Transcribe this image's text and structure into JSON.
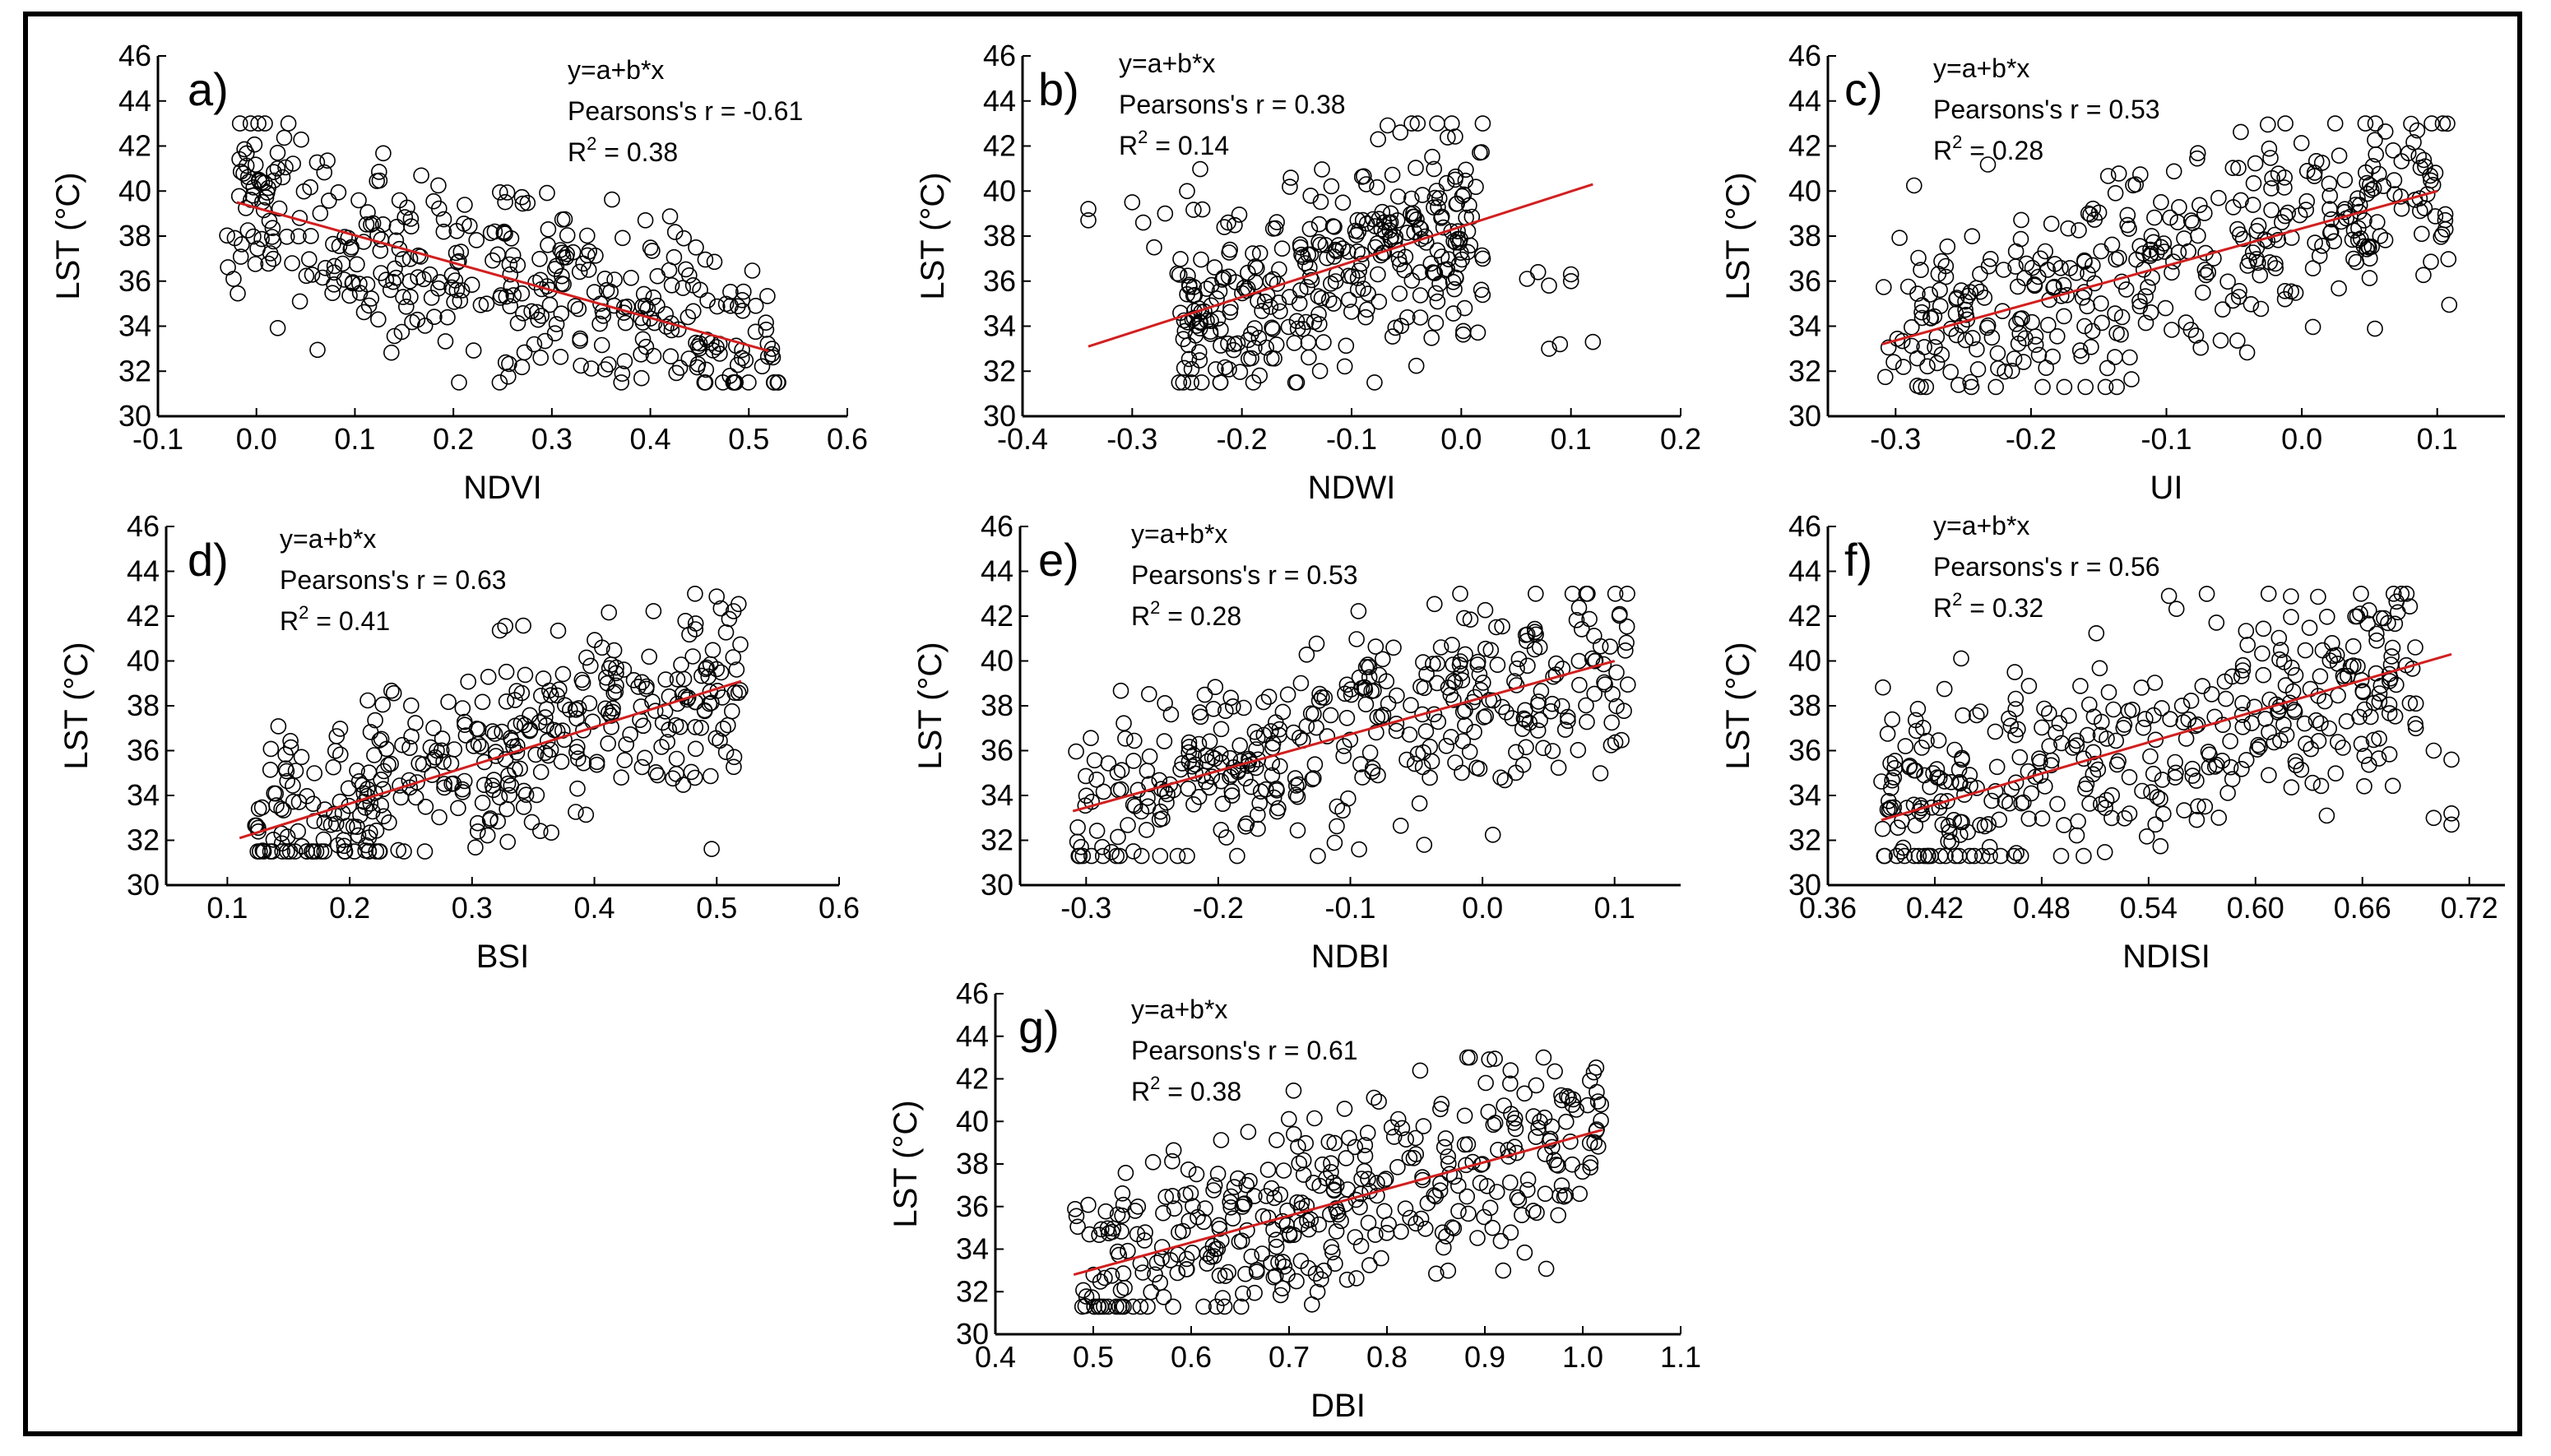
{
  "figure": {
    "colors": {
      "points": "#000000",
      "fit_line": "#d21f1f",
      "axes": "#000000",
      "background": "#ffffff"
    }
  },
  "chart_data": [
    {
      "id": "a",
      "type": "scatter",
      "panel_label": "a)",
      "xlabel": "NDVI",
      "ylabel": "LST (°C)",
      "xlim": [
        -0.1,
        0.6
      ],
      "ylim": [
        30,
        46
      ],
      "xticks": [
        -0.1,
        0.0,
        0.1,
        0.2,
        0.3,
        0.4,
        0.5,
        0.6
      ],
      "xtick_labels": [
        "-0.1",
        "0.0",
        "0.1",
        "0.2",
        "0.3",
        "0.4",
        "0.5",
        "0.6"
      ],
      "yticks": [
        30,
        32,
        34,
        36,
        38,
        40,
        42,
        44,
        46
      ],
      "ytick_labels": [
        "30",
        "32",
        "34",
        "36",
        "38",
        "40",
        "42",
        "44",
        "46"
      ],
      "equation": "y=a+b*x",
      "pearson": "Pearsons's r = -0.61",
      "r2_prefix": "R",
      "r2_value": " = 0.38",
      "fit": {
        "x": [
          -0.02,
          0.52
        ],
        "y": [
          39.5,
          32.9
        ]
      },
      "cloud": {
        "x_range": [
          -0.03,
          0.53
        ],
        "y_range": [
          31.5,
          43
        ],
        "trend": -12.0,
        "n": 380,
        "seed": 11
      }
    },
    {
      "id": "b",
      "type": "scatter",
      "panel_label": "b)",
      "xlabel": "NDWI",
      "ylabel": "LST (°C)",
      "xlim": [
        -0.4,
        0.2
      ],
      "ylim": [
        30,
        46
      ],
      "xticks": [
        -0.4,
        -0.3,
        -0.2,
        -0.1,
        0.0,
        0.1,
        0.2
      ],
      "xtick_labels": [
        "-0.4",
        "-0.3",
        "-0.2",
        "-0.1",
        "0.0",
        "0.1",
        "0.2"
      ],
      "yticks": [
        30,
        32,
        34,
        36,
        38,
        40,
        42,
        44,
        46
      ],
      "ytick_labels": [
        "30",
        "32",
        "34",
        "36",
        "38",
        "40",
        "42",
        "44",
        "46"
      ],
      "equation": "y=a+b*x",
      "pearson": "Pearsons's r = 0.38",
      "r2_prefix": "R",
      "r2_value": " = 0.14",
      "fit": {
        "x": [
          -0.34,
          0.12
        ],
        "y": [
          33.1,
          40.3
        ]
      },
      "cloud": {
        "x_range": [
          -0.26,
          0.02
        ],
        "y_range": [
          31.5,
          43
        ],
        "trend": 10.0,
        "n": 330,
        "seed": 23
      },
      "outliers": {
        "x": [
          -0.34,
          -0.34,
          -0.3,
          -0.29,
          -0.28,
          -0.27,
          -0.25,
          0.07,
          0.08,
          0.1,
          0.08,
          0.09,
          0.12,
          0.1,
          0.06
        ],
        "y": [
          38.7,
          39.2,
          39.5,
          38.6,
          37.5,
          39.0,
          40.0,
          36.4,
          35.8,
          36.0,
          33.0,
          33.2,
          33.3,
          36.3,
          36.1
        ]
      }
    },
    {
      "id": "c",
      "type": "scatter",
      "panel_label": "c)",
      "xlabel": "UI",
      "ylabel": "LST (°C)",
      "xlim": [
        -0.35,
        0.15
      ],
      "ylim": [
        30,
        46
      ],
      "xticks": [
        -0.3,
        -0.2,
        -0.1,
        0.0,
        0.1
      ],
      "xtick_labels": [
        "-0.3",
        "-0.2",
        "-0.1",
        "0.0",
        "0.1"
      ],
      "yticks": [
        30,
        32,
        34,
        36,
        38,
        40,
        42,
        44,
        46
      ],
      "ytick_labels": [
        "30",
        "32",
        "34",
        "36",
        "38",
        "40",
        "42",
        "44",
        "46"
      ],
      "equation": "y=a+b*x",
      "pearson": "Pearsons's r = 0.53",
      "r2_prefix": "R",
      "r2_value": " = 0.28",
      "fit": {
        "x": [
          -0.31,
          0.1
        ],
        "y": [
          33.2,
          40.0
        ]
      },
      "cloud": {
        "x_range": [
          -0.31,
          0.11
        ],
        "y_range": [
          31.3,
          43
        ],
        "trend": 16.0,
        "n": 380,
        "seed": 37
      }
    },
    {
      "id": "d",
      "type": "scatter",
      "panel_label": "d)",
      "xlabel": "BSI",
      "ylabel": "LST (°C)",
      "xlim": [
        0.05,
        0.6
      ],
      "ylim": [
        30,
        46
      ],
      "xticks": [
        0.1,
        0.2,
        0.3,
        0.4,
        0.5,
        0.6
      ],
      "xtick_labels": [
        "0.1",
        "0.2",
        "0.3",
        "0.4",
        "0.5",
        "0.6"
      ],
      "yticks": [
        30,
        32,
        34,
        36,
        38,
        40,
        42,
        44,
        46
      ],
      "ytick_labels": [
        "30",
        "32",
        "34",
        "36",
        "38",
        "40",
        "42",
        "44",
        "46"
      ],
      "equation": "y=a+b*x",
      "pearson": "Pearsons's r = 0.63",
      "r2_prefix": "R",
      "r2_value": " = 0.41",
      "fit": {
        "x": [
          0.11,
          0.52
        ],
        "y": [
          32.1,
          39.1
        ]
      },
      "cloud": {
        "x_range": [
          0.12,
          0.52
        ],
        "y_range": [
          31.5,
          43
        ],
        "trend": 17.0,
        "n": 380,
        "seed": 41
      }
    },
    {
      "id": "e",
      "type": "scatter",
      "panel_label": "e)",
      "xlabel": "NDBI",
      "ylabel": "LST (°C)",
      "xlim": [
        -0.35,
        0.15
      ],
      "ylim": [
        30,
        46
      ],
      "xticks": [
        -0.3,
        -0.2,
        -0.1,
        0.0,
        0.1
      ],
      "xtick_labels": [
        "-0.3",
        "-0.2",
        "-0.1",
        "0.0",
        "0.1"
      ],
      "yticks": [
        30,
        32,
        34,
        36,
        38,
        40,
        42,
        44,
        46
      ],
      "ytick_labels": [
        "30",
        "32",
        "34",
        "36",
        "38",
        "40",
        "42",
        "44",
        "46"
      ],
      "equation": "y=a+b*x",
      "pearson": "Pearsons's r = 0.53",
      "r2_prefix": "R",
      "r2_value": " = 0.28",
      "fit": {
        "x": [
          -0.31,
          0.1
        ],
        "y": [
          33.3,
          40.0
        ]
      },
      "cloud": {
        "x_range": [
          -0.31,
          0.11
        ],
        "y_range": [
          31.3,
          43
        ],
        "trend": 16.0,
        "n": 380,
        "seed": 53
      }
    },
    {
      "id": "f",
      "type": "scatter",
      "panel_label": "f)",
      "xlabel": "NDISI",
      "ylabel": "LST (°C)",
      "xlim": [
        0.36,
        0.74
      ],
      "ylim": [
        30,
        46
      ],
      "xticks": [
        0.36,
        0.42,
        0.48,
        0.54,
        0.6,
        0.66,
        0.72
      ],
      "xtick_labels": [
        "0.36",
        "0.42",
        "0.48",
        "0.54",
        "0.60",
        "0.66",
        "0.72"
      ],
      "yticks": [
        30,
        32,
        34,
        36,
        38,
        40,
        42,
        44,
        46
      ],
      "ytick_labels": [
        "30",
        "32",
        "34",
        "36",
        "38",
        "40",
        "42",
        "44",
        "46"
      ],
      "equation": "y=a+b*x",
      "pearson": "Pearsons's r = 0.56",
      "r2_prefix": "R",
      "r2_value": " = 0.32",
      "fit": {
        "x": [
          0.39,
          0.71
        ],
        "y": [
          32.9,
          40.3
        ]
      },
      "cloud": {
        "x_range": [
          0.39,
          0.69
        ],
        "y_range": [
          31.3,
          43
        ],
        "trend": 22.0,
        "n": 380,
        "seed": 67
      },
      "outliers": {
        "x": [
          0.7,
          0.71,
          0.71,
          0.69,
          0.7,
          0.71,
          0.69,
          0.64
        ],
        "y": [
          33.0,
          33.2,
          32.7,
          37.0,
          36.0,
          35.6,
          38.1,
          33.1
        ]
      }
    },
    {
      "id": "g",
      "type": "scatter",
      "panel_label": "g)",
      "xlabel": "DBI",
      "ylabel": "LST (°C)",
      "xlim": [
        0.4,
        1.1
      ],
      "ylim": [
        30,
        46
      ],
      "xticks": [
        0.4,
        0.5,
        0.6,
        0.7,
        0.8,
        0.9,
        1.0,
        1.1
      ],
      "xtick_labels": [
        "0.4",
        "0.5",
        "0.6",
        "0.7",
        "0.8",
        "0.9",
        "1.0",
        "1.1"
      ],
      "yticks": [
        30,
        32,
        34,
        36,
        38,
        40,
        42,
        44,
        46
      ],
      "ytick_labels": [
        "30",
        "32",
        "34",
        "36",
        "38",
        "40",
        "42",
        "44",
        "46"
      ],
      "equation": "y=a+b*x",
      "pearson": "Pearsons's r = 0.61",
      "r2_prefix": "R",
      "r2_value": " = 0.38",
      "fit": {
        "x": [
          0.48,
          1.02
        ],
        "y": [
          32.8,
          39.6
        ]
      },
      "cloud": {
        "x_range": [
          0.48,
          1.02
        ],
        "y_range": [
          31.3,
          43
        ],
        "trend": 12.0,
        "n": 380,
        "seed": 79
      }
    }
  ]
}
